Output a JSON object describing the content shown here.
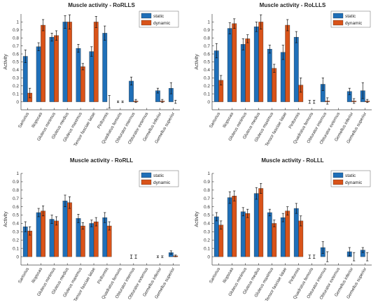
{
  "colors": {
    "static": "#1f6fb8",
    "dynamic": "#d95319"
  },
  "chart_data": [
    {
      "type": "bar",
      "title": "Muscle activity - RoRLLS",
      "ylabel": "Activity",
      "ylim": [
        -0.1,
        1.1
      ],
      "yticks": [
        0,
        0.1,
        0.2,
        0.3,
        0.4,
        0.5,
        0.6,
        0.7,
        0.8,
        0.9,
        1
      ],
      "legend": "top-right",
      "categories": [
        "Sartorius",
        "Iliopsoas",
        "Gluteus minimus",
        "Gluteus medius",
        "Gluteus maximus",
        "Tensor fasciae latae",
        "Piriformis",
        "Quadratus femoris",
        "Obturator internus",
        "Obturator externus",
        "Gemellus inferior",
        "Gemellus superior"
      ],
      "series": [
        {
          "name": "static",
          "values": [
            0.57,
            0.69,
            0.81,
            1.0,
            0.67,
            0.63,
            0.86,
            0.0,
            0.26,
            0.0,
            0.14,
            0.17
          ],
          "errors": [
            0.08,
            0.05,
            0.05,
            0.08,
            0.05,
            0.06,
            0.09,
            0.01,
            0.05,
            0.0,
            0.03,
            0.07
          ]
        },
        {
          "name": "dynamic",
          "values": [
            0.11,
            0.96,
            0.83,
            1.0,
            0.44,
            1.0,
            0.0,
            0.0,
            0.01,
            0.0,
            0.01,
            0.0
          ],
          "errors": [
            0.06,
            0.07,
            0.06,
            0.09,
            0.04,
            0.07,
            0.08,
            0.01,
            0.02,
            0.0,
            0.02,
            0.02
          ]
        }
      ]
    },
    {
      "type": "bar",
      "title": "Muscle activity - RoLLLS",
      "ylabel": "Activity",
      "ylim": [
        -0.1,
        1.1
      ],
      "yticks": [
        0,
        0.1,
        0.2,
        0.3,
        0.4,
        0.5,
        0.6,
        0.7,
        0.8,
        0.9,
        1
      ],
      "legend": "top-right",
      "categories": [
        "Sartorius",
        "Iliopsoas",
        "Gluteus minimus",
        "Gluteus medius",
        "Gluteus maximus",
        "Tensor fasciae latae",
        "Piriformis",
        "Quadratus femoris",
        "Obturator internus",
        "Obturator externus",
        "Gemellus inferior",
        "Gemellus superior"
      ],
      "series": [
        {
          "name": "static",
          "values": [
            0.64,
            0.92,
            0.72,
            0.94,
            0.66,
            0.62,
            0.81,
            0.0,
            0.22,
            0.0,
            0.13,
            0.14
          ],
          "errors": [
            0.09,
            0.07,
            0.07,
            0.06,
            0.05,
            0.09,
            0.07,
            0.02,
            0.08,
            0.0,
            0.04,
            0.1
          ]
        },
        {
          "name": "dynamic",
          "values": [
            0.27,
            0.98,
            0.79,
            1.0,
            0.42,
            0.96,
            0.21,
            0.0,
            0.01,
            0.0,
            0.01,
            0.01
          ],
          "errors": [
            0.06,
            0.06,
            0.05,
            0.09,
            0.05,
            0.07,
            0.09,
            0.02,
            0.04,
            0.0,
            0.03,
            0.02
          ]
        }
      ]
    },
    {
      "type": "bar",
      "title": "Muscle activity - RoRLL",
      "ylabel": "Activity",
      "ylim": [
        -0.1,
        1.0
      ],
      "yticks": [
        0,
        0.1,
        0.2,
        0.3,
        0.4,
        0.5,
        0.6,
        0.7,
        0.8,
        0.9,
        1
      ],
      "legend": "top-right",
      "categories": [
        "Sartorius",
        "Iliopsoas",
        "Gluteus minimus",
        "Gluteus medius",
        "Gluteus maximus",
        "Tensor fasciae latae",
        "Piriformis",
        "Quadratus femoris",
        "Obturator internus",
        "Obturator externus",
        "Gemellus inferior",
        "Gemellus superior"
      ],
      "series": [
        {
          "name": "static",
          "values": [
            0.36,
            0.53,
            0.45,
            0.67,
            0.46,
            0.4,
            0.47,
            0.0,
            0.0,
            0.0,
            0.0,
            0.05
          ],
          "errors": [
            0.06,
            0.05,
            0.05,
            0.07,
            0.05,
            0.04,
            0.06,
            0.0,
            0.02,
            0.0,
            0.01,
            0.02
          ]
        },
        {
          "name": "dynamic",
          "values": [
            0.31,
            0.55,
            0.43,
            0.65,
            0.37,
            0.42,
            0.37,
            0.0,
            0.0,
            0.0,
            0.0,
            0.01
          ],
          "errors": [
            0.05,
            0.06,
            0.05,
            0.07,
            0.04,
            0.05,
            0.05,
            0.0,
            0.02,
            0.0,
            0.01,
            0.01
          ]
        }
      ]
    },
    {
      "type": "bar",
      "title": "Muscle activity - RoLLL",
      "ylabel": "Activity",
      "ylim": [
        -0.1,
        1.0
      ],
      "yticks": [
        0,
        0.1,
        0.2,
        0.3,
        0.4,
        0.5,
        0.6,
        0.7,
        0.8,
        0.9,
        1
      ],
      "legend": "top-right",
      "categories": [
        "Sartorius",
        "Iliopsoas",
        "Gluteus minimus",
        "Gluteus medius",
        "Gluteus maximus",
        "Tensor fasciae latae",
        "Piriformis",
        "Quadratus femoris",
        "Obturator internus",
        "Obturator externus",
        "Gemellus inferior",
        "Gemellus superior"
      ],
      "series": [
        {
          "name": "static",
          "values": [
            0.48,
            0.71,
            0.54,
            0.76,
            0.53,
            0.47,
            0.58,
            0.0,
            0.11,
            0.0,
            0.06,
            0.08
          ],
          "errors": [
            0.05,
            0.07,
            0.05,
            0.07,
            0.04,
            0.05,
            0.06,
            0.02,
            0.07,
            0.0,
            0.05,
            0.03
          ]
        },
        {
          "name": "dynamic",
          "values": [
            0.38,
            0.73,
            0.52,
            0.82,
            0.4,
            0.55,
            0.43,
            0.0,
            0.0,
            0.0,
            0.0,
            0.0
          ],
          "errors": [
            0.05,
            0.06,
            0.05,
            0.06,
            0.04,
            0.05,
            0.06,
            0.02,
            0.06,
            0.0,
            0.05,
            0.05
          ]
        }
      ]
    }
  ]
}
